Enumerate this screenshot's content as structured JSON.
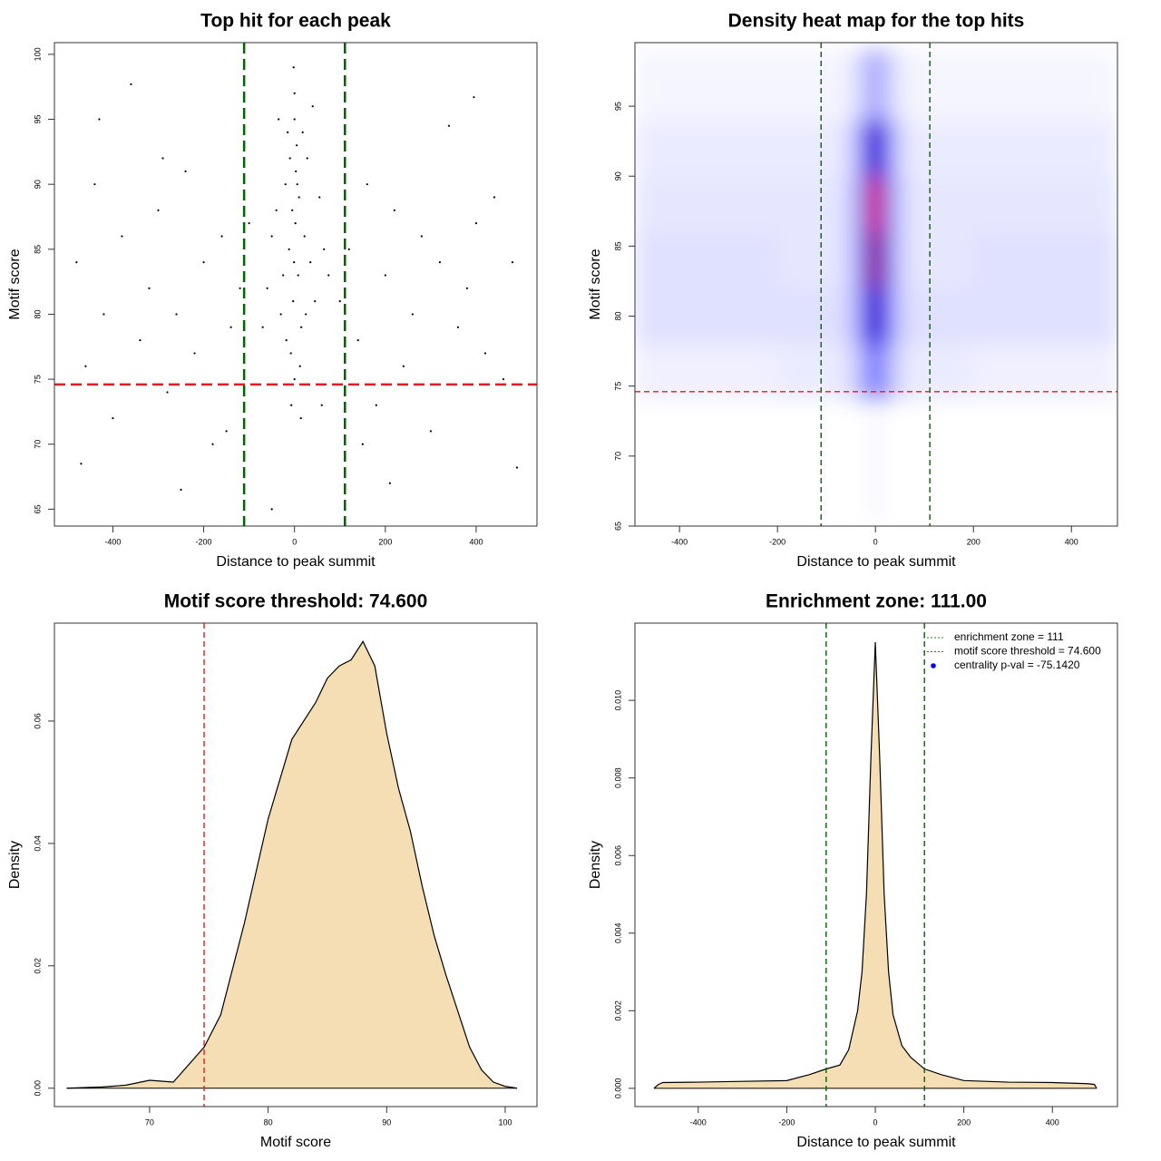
{
  "chart_data": [
    {
      "type": "scatter",
      "title": "Top hit for each peak",
      "x_label": "Distance to peak summit",
      "y_label": "Motif score",
      "color": "#000000",
      "x": [
        -5,
        3,
        -12,
        8,
        0,
        15,
        -20,
        22,
        -3,
        5,
        -8,
        10,
        -15,
        2,
        -25,
        28,
        0,
        -2,
        12,
        -30,
        35,
        -40,
        45,
        -1,
        6,
        -10,
        18,
        -18,
        25,
        0,
        -50,
        55,
        -60,
        65,
        -35,
        40,
        -7,
        14,
        -70,
        75,
        -480,
        -460,
        -440,
        -420,
        -400,
        -380,
        -360,
        -340,
        -320,
        -300,
        -280,
        -260,
        -240,
        -220,
        -200,
        -180,
        -160,
        -140,
        -120,
        -100,
        100,
        120,
        140,
        160,
        180,
        200,
        220,
        240,
        260,
        280,
        300,
        320,
        340,
        360,
        380,
        400,
        420,
        440,
        460,
        480,
        -470,
        -250,
        -50,
        210,
        490,
        395,
        -290,
        -430,
        60,
        -150,
        150
      ],
      "y": [
        88,
        91,
        85,
        83,
        95,
        79,
        90,
        86,
        81,
        93,
        77,
        89,
        94,
        87,
        83,
        92,
        97,
        99,
        76,
        80,
        84,
        88,
        81,
        84,
        90,
        92,
        94,
        78,
        80,
        75,
        86,
        89,
        82,
        85,
        95,
        96,
        73,
        72,
        79,
        83,
        84,
        76,
        90,
        80,
        72,
        86,
        97.7,
        78,
        82,
        88,
        74,
        80,
        91,
        77,
        84,
        70,
        86,
        79,
        82,
        87,
        81,
        85,
        78,
        90,
        73,
        83,
        88,
        76,
        80,
        86,
        71,
        84,
        94.5,
        79,
        82,
        87,
        77,
        89,
        75,
        84,
        68.5,
        66.5,
        65,
        67,
        68.2,
        96.7,
        92,
        95,
        73,
        71,
        70
      ],
      "xlim": [
        -528.7,
        533.9
      ],
      "ylim": [
        63.7,
        100.9
      ],
      "xticks": [
        -400,
        -200,
        0,
        200,
        400
      ],
      "yticks": [
        65,
        70,
        75,
        80,
        85,
        90,
        95,
        100
      ],
      "vlines": [
        {
          "value": -111,
          "color": "#006400"
        },
        {
          "value": 111,
          "color": "#006400"
        }
      ],
      "hlines": [
        {
          "value": 74.6,
          "color": "#e41a1c"
        }
      ]
    },
    {
      "type": "heatmap",
      "title": "Density heat map for the top hits",
      "x_label": "Distance to peak summit",
      "y_label": "Motif score",
      "colors": [
        "#ffffff",
        "#0000ff",
        "#ff0000"
      ],
      "xbins": [
        -491,
        -200,
        -60,
        -30,
        -12,
        12,
        30,
        60,
        200,
        494
      ],
      "ybins": [
        65,
        74,
        78,
        82,
        86,
        90,
        94,
        99
      ],
      "z": [
        [
          0,
          0,
          0,
          0,
          0.02,
          0,
          0,
          0,
          0
        ],
        [
          0.03,
          0.04,
          0.08,
          0.2,
          0.3,
          0.2,
          0.08,
          0.04,
          0.03
        ],
        [
          0.06,
          0.06,
          0.12,
          0.45,
          0.65,
          0.45,
          0.12,
          0.06,
          0.06
        ],
        [
          0.06,
          0.05,
          0.12,
          0.55,
          0.85,
          0.55,
          0.12,
          0.05,
          0.06
        ],
        [
          0.05,
          0.05,
          0.12,
          0.55,
          1.0,
          0.55,
          0.12,
          0.05,
          0.05
        ],
        [
          0.04,
          0.04,
          0.1,
          0.4,
          0.65,
          0.4,
          0.1,
          0.04,
          0.04
        ],
        [
          0.02,
          0.02,
          0.05,
          0.12,
          0.2,
          0.12,
          0.05,
          0.02,
          0.02
        ]
      ],
      "xlim": [
        -491,
        494
      ],
      "ylim": [
        65,
        99.54
      ],
      "xticks": [
        -400,
        -200,
        0,
        200,
        400
      ],
      "yticks": [
        65,
        70,
        75,
        80,
        85,
        90,
        95
      ],
      "vlines": [
        {
          "value": -111,
          "color": "#006400"
        },
        {
          "value": 111,
          "color": "#006400"
        }
      ],
      "hlines": [
        {
          "value": 74.6,
          "color": "#e41a1c"
        }
      ]
    },
    {
      "type": "density",
      "title": "Motif score threshold: 74.600",
      "x_label": "Motif score",
      "y_label": "Density",
      "color": "#f5deb3",
      "x": [
        63,
        66,
        68,
        70,
        72,
        74.6,
        76,
        78,
        80,
        82,
        84,
        85,
        86,
        87,
        88,
        89,
        90,
        91,
        92,
        93,
        94,
        95,
        96,
        97,
        98,
        99,
        100,
        101
      ],
      "y": [
        0,
        0.0002,
        0.0005,
        0.0013,
        0.001,
        0.0067,
        0.012,
        0.027,
        0.044,
        0.057,
        0.063,
        0.067,
        0.069,
        0.07,
        0.073,
        0.069,
        0.058,
        0.049,
        0.042,
        0.033,
        0.025,
        0.0185,
        0.0126,
        0.0067,
        0.003,
        0.001,
        0.0003,
        0
      ],
      "xlim": [
        61.97,
        102.68
      ],
      "ylim": [
        -0.003,
        0.076
      ],
      "xticks": [
        70,
        80,
        90,
        100
      ],
      "yticks": [
        {
          "value": 0,
          "label": "0.00"
        },
        0.02,
        0.04,
        0.06
      ],
      "vlines": [
        {
          "value": 74.6,
          "color": "#e41a1c"
        }
      ],
      "hlines": []
    },
    {
      "type": "density",
      "title": "Enrichment zone: 111.00",
      "x_label": "Distance to peak summit",
      "y_label": "Density",
      "color": "#f5deb3",
      "x": [
        -500,
        -490,
        -480,
        -400,
        -300,
        -200,
        -150,
        -111,
        -80,
        -60,
        -40,
        -30,
        -20,
        -10,
        0,
        10,
        20,
        30,
        40,
        60,
        80,
        111,
        150,
        200,
        300,
        400,
        480,
        495,
        500
      ],
      "y": [
        0,
        0.0001,
        0.00015,
        0.00016,
        0.00018,
        0.0002,
        0.00035,
        0.0005,
        0.0006,
        0.001,
        0.002,
        0.003,
        0.005,
        0.0085,
        0.0115,
        0.0085,
        0.005,
        0.003,
        0.0019,
        0.0011,
        0.0008,
        0.0005,
        0.00035,
        0.0002,
        0.00016,
        0.00015,
        0.00012,
        0.0001,
        0
      ],
      "xlim": [
        -543,
        547
      ],
      "ylim": [
        -0.00047,
        0.01199
      ],
      "xticks": [
        -400,
        -200,
        0,
        200,
        400
      ],
      "yticks": [
        {
          "value": 0,
          "label": "0.000"
        },
        0.002,
        0.004,
        0.006,
        0.008,
        {
          "value": 0.01,
          "label": "0.010"
        }
      ],
      "vlines": [
        {
          "value": -111,
          "color": "#006400"
        },
        {
          "value": 111,
          "color": "#006400"
        }
      ],
      "hlines": [],
      "legend": {
        "position": "topright",
        "entries": [
          {
            "label": "enrichment zone = 111",
            "color": "#228b22",
            "style": "dotted"
          },
          {
            "label": "motif score threshold = 74.600",
            "color": "#e41a1c",
            "style": "dotted"
          },
          {
            "label": "centrality p-val = -75.1420",
            "color": "#0000ff",
            "style": "point"
          }
        ]
      }
    }
  ]
}
